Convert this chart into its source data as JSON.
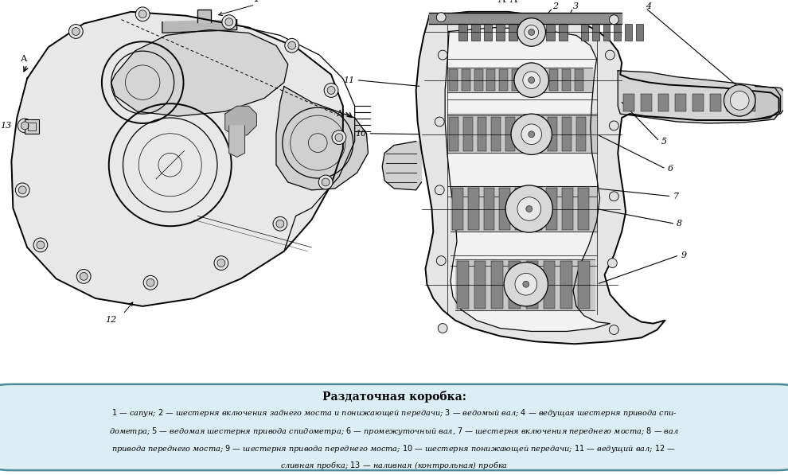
{
  "title": "Раздаточная коробка:",
  "caption_text": "1 — сапун; 2 — шестерня включения заднего моста и понижающей передачи; 3 — ведомый вал; 4 — ведущая шестерня привода спи-\nдометра; 5 — ведомая шестерня привода спидометра; 6 — промежуточный вал, 7 — шестерня включения переднего моста; 8 — вал\nпривода переднего моста; 9 — шестерня привода переднего моста; 10 — шестерня понижающей передачи; 11 — ведущий вал; 12 —\nсливная пробка; 13 — наливная (контрольная) пробка",
  "bg_color": "#ffffff",
  "caption_bg": "#daeef3",
  "caption_border": "#4a8a9a",
  "fig_width": 9.9,
  "fig_height": 5.97,
  "dpi": 100
}
